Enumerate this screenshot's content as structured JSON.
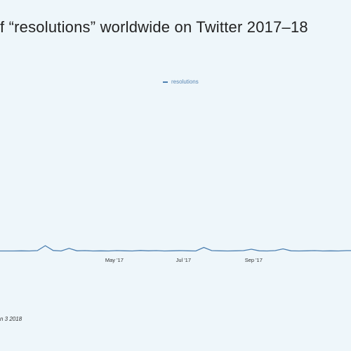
{
  "chart_data": {
    "type": "line",
    "title": "f “resolutions” worldwide on Twitter 2017–18",
    "xlabel": "",
    "ylabel": "",
    "x_ticks": [
      "May '17",
      "Jul '17",
      "Sep '17"
    ],
    "legend_position": "top-center",
    "grid": false,
    "series": [
      {
        "name": "resolutions",
        "color": "#4c7fb0",
        "x": [
          "2017-02-01",
          "2017-02-08",
          "2017-02-15",
          "2017-02-22",
          "2017-03-01",
          "2017-03-08",
          "2017-03-15",
          "2017-03-22",
          "2017-03-29",
          "2017-04-05",
          "2017-04-12",
          "2017-04-19",
          "2017-04-26",
          "2017-05-03",
          "2017-05-10",
          "2017-05-17",
          "2017-05-24",
          "2017-05-31",
          "2017-06-07",
          "2017-06-14",
          "2017-06-21",
          "2017-06-28",
          "2017-07-05",
          "2017-07-12",
          "2017-07-19",
          "2017-07-26",
          "2017-08-02",
          "2017-08-09",
          "2017-08-16",
          "2017-08-23",
          "2017-08-30",
          "2017-09-06",
          "2017-09-13",
          "2017-09-20",
          "2017-09-27",
          "2017-10-04",
          "2017-10-11",
          "2017-10-18",
          "2017-10-25",
          "2017-11-01",
          "2017-11-08",
          "2017-11-15",
          "2017-11-22"
        ],
        "values": [
          1.0,
          1.1,
          1.0,
          1.2,
          4.0,
          1.3,
          1.0,
          2.5,
          1.1,
          1.2,
          1.0,
          1.1,
          1.0,
          1.2,
          1.1,
          1.0,
          1.3,
          1.1,
          1.2,
          1.0,
          1.1,
          1.2,
          1.1,
          1.0,
          3.0,
          1.2,
          1.1,
          1.0,
          1.1,
          1.2,
          2.0,
          1.1,
          1.0,
          1.2,
          2.2,
          1.1,
          1.0,
          1.1,
          1.2,
          1.0,
          1.1,
          1.0,
          1.2
        ]
      }
    ],
    "ylim": [
      0,
      100
    ],
    "xlim": [
      "2017-01-20",
      "2017-11-26"
    ]
  },
  "footnote": "n 3 2018"
}
